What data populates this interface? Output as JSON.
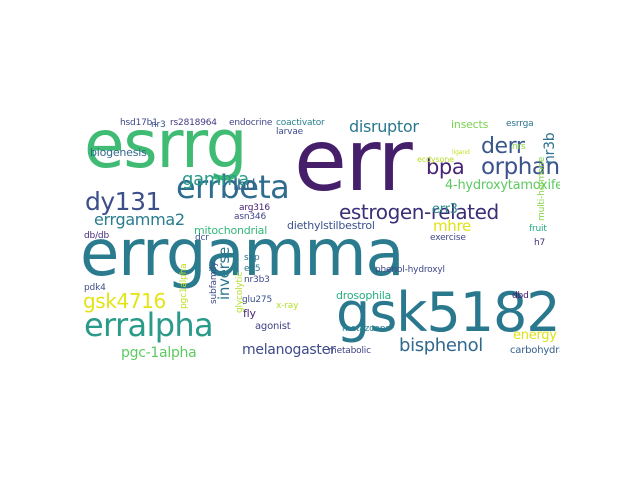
{
  "word_cloud": {
    "words": [
      {
        "text": "errgamma",
        "color": "#2b7b8e"
      },
      {
        "text": "err",
        "color": "#461f6b"
      },
      {
        "text": "esrrg",
        "color": "#3fbb74"
      },
      {
        "text": "gsk5182",
        "color": "#2a788e"
      },
      {
        "text": "erralpha",
        "color": "#2a9b8a"
      },
      {
        "text": "errbeta",
        "color": "#2f6d8e"
      },
      {
        "text": "estrogen-related",
        "color": "#3b2f78"
      },
      {
        "text": "dy131",
        "color": "#3c4f8a"
      },
      {
        "text": "orphan",
        "color": "#3b528b"
      },
      {
        "text": "derr",
        "color": "#38588c"
      },
      {
        "text": "bpa",
        "color": "#482475"
      },
      {
        "text": "gamma",
        "color": "#2a9b8a"
      },
      {
        "text": "gsk4716",
        "color": "#e3e418"
      },
      {
        "text": "bisphenol",
        "color": "#31688e"
      },
      {
        "text": "melanogaster",
        "color": "#3f4a8a"
      },
      {
        "text": "errgamma2",
        "color": "#297b8e"
      },
      {
        "text": "disruptor",
        "color": "#2b788e"
      },
      {
        "text": "pgc-1alpha",
        "color": "#5ec962"
      },
      {
        "text": "mhre",
        "color": "#e0e318"
      },
      {
        "text": "energy",
        "color": "#dde318"
      },
      {
        "text": "lbd",
        "color": "#33638d"
      },
      {
        "text": "inverse",
        "color": "#2a778e"
      },
      {
        "text": "nr3b",
        "color": "#2d718e"
      },
      {
        "text": "4-hydroxytamoxifen",
        "color": "#5ec962"
      },
      {
        "text": "err3",
        "color": "#2a8e8c"
      },
      {
        "text": "biogenesis",
        "color": "#31688e"
      },
      {
        "text": "mitochondrial",
        "color": "#35b779"
      },
      {
        "text": "diethylstilbestrol",
        "color": "#3b528b"
      },
      {
        "text": "drosophila",
        "color": "#26ad81"
      },
      {
        "text": "agonist",
        "color": "#424086"
      },
      {
        "text": "metabolic",
        "color": "#414487"
      },
      {
        "text": "carbohydrate",
        "color": "#355f8d"
      },
      {
        "text": "insects",
        "color": "#7ad151"
      },
      {
        "text": "esrrga",
        "color": "#2c728e"
      },
      {
        "text": "fly",
        "color": "#482878"
      },
      {
        "text": "x-ray",
        "color": "#b5de2b"
      },
      {
        "text": "exercise",
        "color": "#3f4889"
      },
      {
        "text": "multi-hormone",
        "color": "#86d549"
      },
      {
        "text": "fruit",
        "color": "#22a884"
      },
      {
        "text": "subfamily",
        "color": "#3e4a89"
      },
      {
        "text": "glycolytic",
        "color": "#b5de2b"
      },
      {
        "text": "pgc1alpha",
        "color": "#c2df23"
      },
      {
        "text": "metazoans",
        "color": "#26828e"
      },
      {
        "text": "phenol-hydroxyl",
        "color": "#3e4989"
      },
      {
        "text": "coactivator",
        "color": "#277f8e"
      },
      {
        "text": "endocrine",
        "color": "#404688"
      },
      {
        "text": "rs2818964",
        "color": "#443983"
      },
      {
        "text": "hsd17b1",
        "color": "#3f4889"
      },
      {
        "text": "nr3",
        "color": "#3b528b"
      },
      {
        "text": "larvae",
        "color": "#3e4c8a"
      },
      {
        "text": "arg316",
        "color": "#482071"
      },
      {
        "text": "asn346",
        "color": "#414487"
      },
      {
        "text": "dcr",
        "color": "#3a538b"
      },
      {
        "text": "db/db",
        "color": "#472c7a"
      },
      {
        "text": "glu275",
        "color": "#3b518b"
      },
      {
        "text": "nr3b3",
        "color": "#3e4a89"
      },
      {
        "text": "e75",
        "color": "#2a778e"
      },
      {
        "text": "shp",
        "color": "#2c728e"
      },
      {
        "text": "pdk4",
        "color": "#3d4e8a"
      },
      {
        "text": "dbd",
        "color": "#481467"
      },
      {
        "text": "h7",
        "color": "#46327e"
      },
      {
        "text": "nrs",
        "color": "#8fd744"
      },
      {
        "text": "ecdysone",
        "color": "#b8de29"
      },
      {
        "text": "ligand",
        "color": "#c2df23"
      }
    ]
  }
}
